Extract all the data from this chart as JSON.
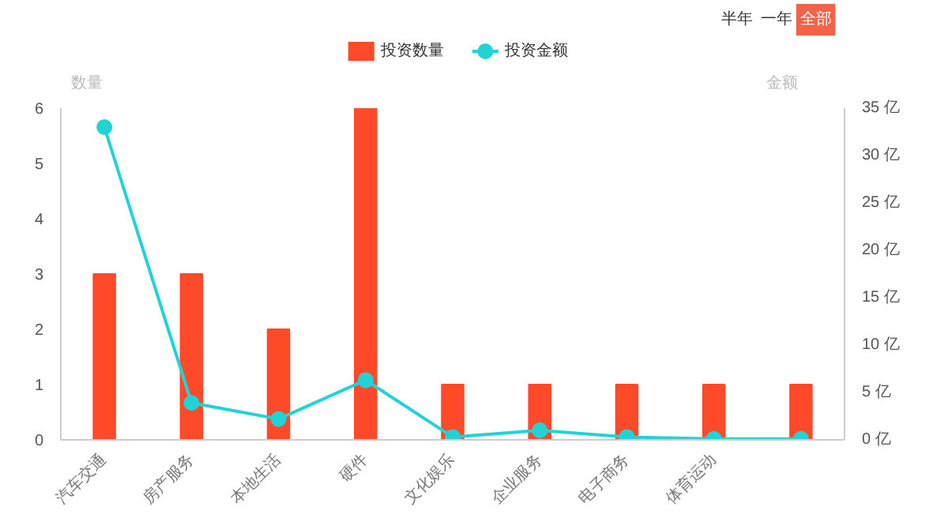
{
  "chart_data": {
    "type": "bar",
    "categories": [
      "汽车交通",
      "房产服务",
      "本地生活",
      "硬件",
      "文化娱乐",
      "企业服务",
      "电子商务",
      "体育运动",
      null
    ],
    "series": [
      {
        "name": "投资数量",
        "type": "bar",
        "color": "#ff4a2a",
        "values": [
          3,
          3,
          2,
          6,
          1,
          1,
          1,
          1,
          1
        ]
      },
      {
        "name": "投资金额",
        "type": "line",
        "color": "#22d3d6",
        "axis": "y2",
        "marker": "circle",
        "values": [
          33,
          3.9,
          2.2,
          6.3,
          0.3,
          1.0,
          0.3,
          0.1,
          0.1
        ]
      }
    ],
    "ylabel": "数量",
    "y2label": "金额",
    "ylim": [
      0,
      6
    ],
    "yticks": [
      0,
      1,
      2,
      3,
      4,
      5,
      6
    ],
    "y2lim": [
      0,
      35
    ],
    "y2ticks": [
      {
        "value": 0,
        "label": "0 亿"
      },
      {
        "value": 5,
        "label": "5 亿"
      },
      {
        "value": 10,
        "label": "10 亿"
      },
      {
        "value": 15,
        "label": "15 亿"
      },
      {
        "value": 20,
        "label": "20 亿"
      },
      {
        "value": 25,
        "label": "25 亿"
      },
      {
        "value": 30,
        "label": "30 亿"
      },
      {
        "value": 35,
        "label": "35 亿"
      }
    ],
    "annotations": [
      "半年",
      "一年",
      "全部"
    ],
    "legend": "top",
    "grid": false
  }
}
